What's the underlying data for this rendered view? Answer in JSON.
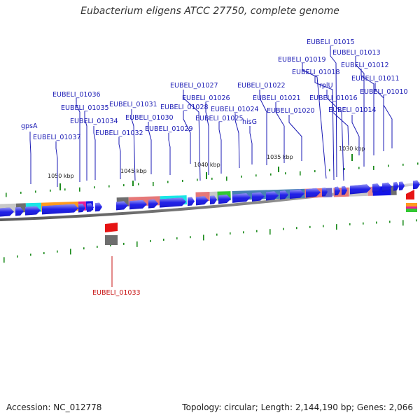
{
  "title": "Eubacterium eligens ATCC 27750, complete genome",
  "footer": {
    "accession_label": "Accession:",
    "accession": "NC_012778",
    "topology_label": "Topology:",
    "topology": "circular",
    "length_label": "Length:",
    "length": "2,144,190 bp",
    "genes_label": "Genes:",
    "genes": "2,066"
  },
  "scale_labels": [
    "1050 kbp",
    "1045 kbp",
    "1040 kbp",
    "1035 kbp",
    "1030 kbp"
  ],
  "gene_labels": [
    "EUBELI_01015",
    "EUBELI_01013",
    "EUBELI_01019",
    "EUBELI_01012",
    "EUBELI_01018",
    "EUBELI_01011",
    "EUBELI_01027",
    "EUBELI_01022",
    "rplU",
    "EUBELI_01010",
    "EUBELI_01036",
    "EUBELI_01026",
    "EUBELI_01021",
    "EUBELI_01016",
    "EUBELI_01031",
    "EUBELI_01028",
    "EUBELI_01024",
    "EUBELI_01035",
    "EUBELI_01020",
    "EUBELI_01014",
    "EUBELI_01030",
    "EUBELI_01025",
    "EUBELI_01034",
    "hisG",
    "gpsA",
    "EUBELI_01029",
    "EUBELI_01032",
    "EUBELI_01037",
    "EUBELI_01033"
  ],
  "colors": {
    "forward_gene": "#1414e6",
    "reverse_highlight": "#e61414",
    "backbone": "#7a7a7a",
    "tick_green": "#1e8c1e",
    "label_blue": "#1a1ab4",
    "label_red": "#c81414",
    "feature_orange": "#ff9a1e",
    "feature_cyan": "#19e6e6",
    "feature_pink": "#e68c8c",
    "feature_steelblue": "#4682b4",
    "feature_magenta": "#e61e96",
    "feature_green": "#32c832",
    "feature_purple": "#6464c8",
    "feature_grey": "#6e6e6e",
    "feature_lightgrey": "#c8c8c8"
  }
}
